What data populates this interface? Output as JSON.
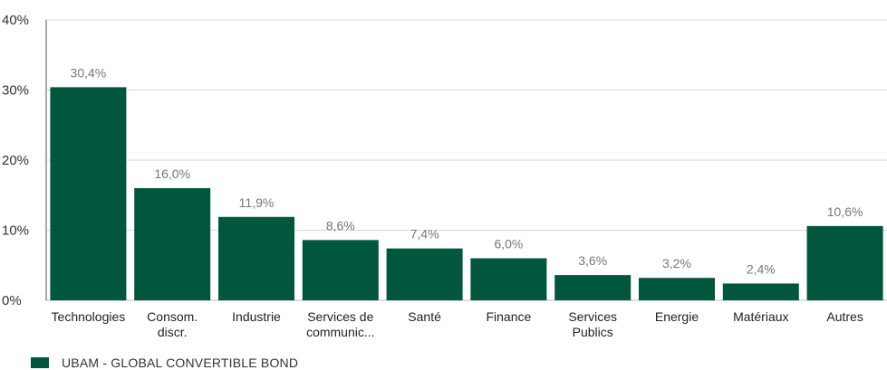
{
  "chart_data": {
    "type": "bar",
    "categories": [
      [
        "Technologies"
      ],
      [
        "Consom.",
        "discr."
      ],
      [
        "Industrie"
      ],
      [
        "Services de",
        "communic..."
      ],
      [
        "Santé"
      ],
      [
        "Finance"
      ],
      [
        "Services",
        "Publics"
      ],
      [
        "Energie"
      ],
      [
        "Matériaux"
      ],
      [
        "Autres"
      ]
    ],
    "series": [
      {
        "name": "UBAM - GLOBAL CONVERTIBLE BOND",
        "values": [
          30.4,
          16.0,
          11.9,
          8.6,
          7.4,
          6.0,
          3.6,
          3.2,
          2.4,
          10.6
        ],
        "labels": [
          "30,4%",
          "16,0%",
          "11,9%",
          "8,6%",
          "7,4%",
          "6,0%",
          "3,6%",
          "3,2%",
          "2,4%",
          "10,6%"
        ],
        "color": "#00573d"
      }
    ],
    "ylim": [
      0,
      40
    ],
    "yticks": [
      0,
      10,
      20,
      30,
      40
    ],
    "ytick_labels": [
      "0%",
      "10%",
      "20%",
      "30%",
      "40%"
    ],
    "grid": true,
    "legend_position": "bottom-left"
  }
}
